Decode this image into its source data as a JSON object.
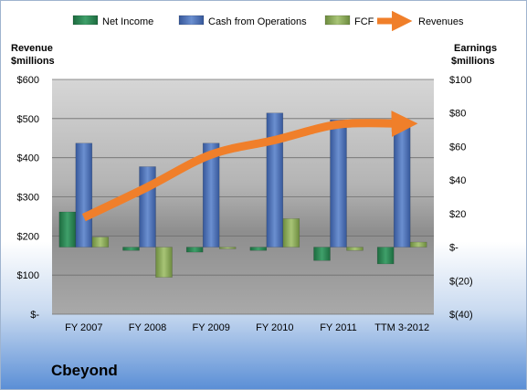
{
  "company": "Cbeyond",
  "chart_data": {
    "type": "bar",
    "categories": [
      "FY 2007",
      "FY 2008",
      "FY 2009",
      "FY 2010",
      "FY 2011",
      "TTM 3-2012"
    ],
    "left_axis": {
      "label_line1": "Revenue",
      "label_line2": "$millions",
      "range": [
        0,
        600
      ],
      "ticks": [
        600,
        500,
        400,
        300,
        200,
        100,
        0
      ],
      "tick_labels": [
        "$600",
        "$500",
        "$400",
        "$300",
        "$200",
        "$100",
        "$-"
      ]
    },
    "right_axis": {
      "label_line1": "Earnings",
      "label_line2": "$millions",
      "range": [
        -40,
        100
      ],
      "ticks": [
        100,
        80,
        60,
        40,
        20,
        0,
        -20,
        -40
      ],
      "tick_labels": [
        "$100",
        "$80",
        "$60",
        "$40",
        "$20",
        "$-",
        "$(20)",
        "$(40)"
      ]
    },
    "series": [
      {
        "name": "Net Income",
        "axis": "right",
        "color": "#2e8a57",
        "values": [
          21,
          -2,
          -3,
          -2,
          -8,
          -10
        ]
      },
      {
        "name": "Cash from Operations",
        "axis": "right",
        "color": "#4f73b8",
        "values": [
          62,
          48,
          62,
          80,
          76,
          75
        ]
      },
      {
        "name": "FCF",
        "axis": "right",
        "color": "#8eae5c",
        "values": [
          6,
          -18,
          -1,
          17,
          -2,
          3
        ]
      },
      {
        "name": "Revenues",
        "axis": "left",
        "type": "line",
        "color": "#f07f2a",
        "values": [
          247,
          325,
          408,
          445,
          485,
          487
        ]
      }
    ],
    "legend_position": "top",
    "grid": true
  }
}
